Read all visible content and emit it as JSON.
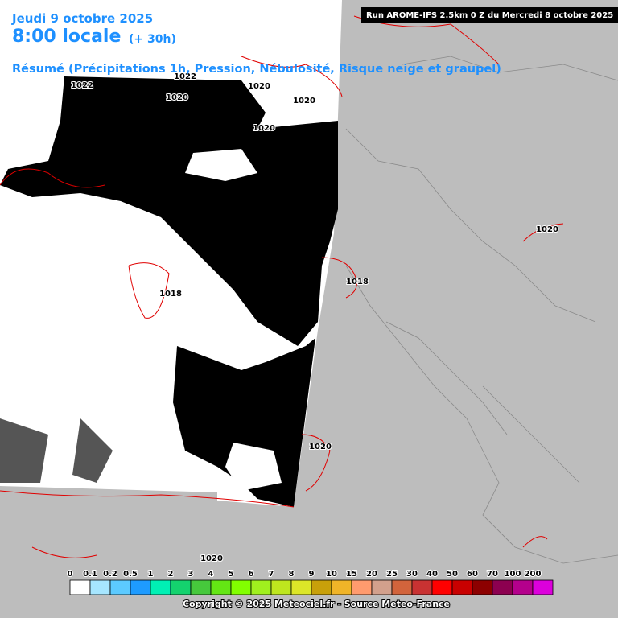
{
  "header": {
    "date": "Jeudi 9 octobre 2025",
    "time": "8:00 locale",
    "lead": "(+ 30h)",
    "summary": "Résumé (Précipitations 1h, Pression, Nébulosité, Risque neige et graupel)",
    "run": "Run AROME-IFS 2.5km 0 Z du Mercredi 8 octobre 2025"
  },
  "isobars": [
    "1022",
    "1022",
    "1020",
    "1020",
    "1020",
    "1020",
    "1018",
    "1018",
    "1020",
    "1020",
    "1020"
  ],
  "legend": {
    "items": [
      {
        "label": "0",
        "color": "#ffffff"
      },
      {
        "label": "0.1",
        "color": "#a6e6ff"
      },
      {
        "label": "0.2",
        "color": "#5ccaff"
      },
      {
        "label": "0.5",
        "color": "#1e9bff"
      },
      {
        "label": "1",
        "color": "#00f0b4"
      },
      {
        "label": "2",
        "color": "#14d26e"
      },
      {
        "label": "3",
        "color": "#46c83c"
      },
      {
        "label": "4",
        "color": "#64e614"
      },
      {
        "label": "5",
        "color": "#82ff00"
      },
      {
        "label": "6",
        "color": "#a0f01e"
      },
      {
        "label": "7",
        "color": "#bee61e"
      },
      {
        "label": "8",
        "color": "#dce628"
      },
      {
        "label": "9",
        "color": "#c8a00a"
      },
      {
        "label": "10",
        "color": "#f0b428"
      },
      {
        "label": "15",
        "color": "#ff9b6e"
      },
      {
        "label": "20",
        "color": "#d2a08c"
      },
      {
        "label": "25",
        "color": "#d2643c"
      },
      {
        "label": "30",
        "color": "#c83232"
      },
      {
        "label": "40",
        "color": "#ff0000"
      },
      {
        "label": "50",
        "color": "#c80000"
      },
      {
        "label": "60",
        "color": "#8c0000"
      },
      {
        "label": "70",
        "color": "#8c0050"
      },
      {
        "label": "100",
        "color": "#b4008c"
      },
      {
        "label": "200",
        "color": "#dc00dc"
      },
      {
        "label": "",
        "color": "#ff00ff"
      }
    ]
  },
  "footer": "Copyright © 2025 Meteociel.fr - Source Meteo-France"
}
